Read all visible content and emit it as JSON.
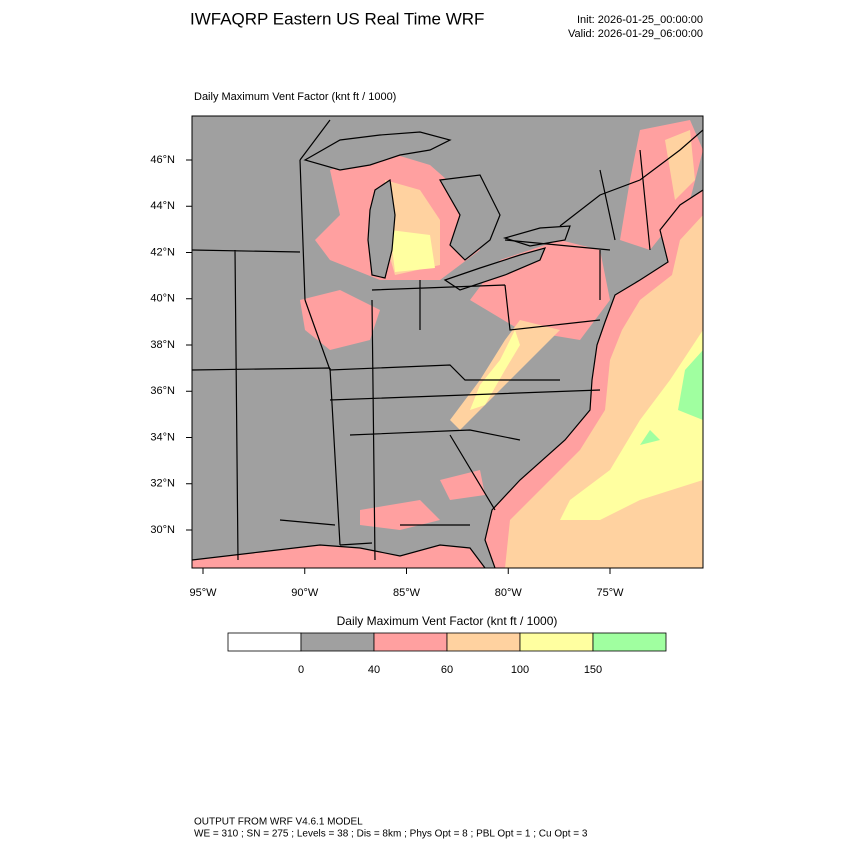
{
  "header": {
    "title": "IWFAQRP Eastern US Real Time WRF",
    "init": "Init: 2026-01-25_00:00:00",
    "valid": "Valid: 2026-01-29_06:00:00"
  },
  "map": {
    "title": "Daily Maximum Vent Factor   (knt ft / 1000)",
    "lat_labels": [
      "46°N",
      "44°N",
      "42°N",
      "40°N",
      "38°N",
      "36°N",
      "34°N",
      "32°N",
      "30°N"
    ],
    "lon_labels": [
      "95°W",
      "90°W",
      "85°W",
      "80°W",
      "75°W"
    ]
  },
  "colorbar": {
    "title": "Daily Maximum Vent Factor  (knt ft / 1000)",
    "colors": [
      "#ffffff",
      "#a0a0a0",
      "#ffa0a0",
      "#ffd2a0",
      "#ffffa0",
      "#a0ffa0"
    ],
    "labels": [
      "0",
      "40",
      "60",
      "100",
      "150"
    ]
  },
  "footer": {
    "line1": "OUTPUT FROM WRF V4.6.1 MODEL",
    "line2": "WE = 310 ; SN = 275 ; Levels = 38 ; Dis = 8km ; Phys Opt = 8 ; PBL Opt = 1 ; Cu Opt = 3"
  }
}
